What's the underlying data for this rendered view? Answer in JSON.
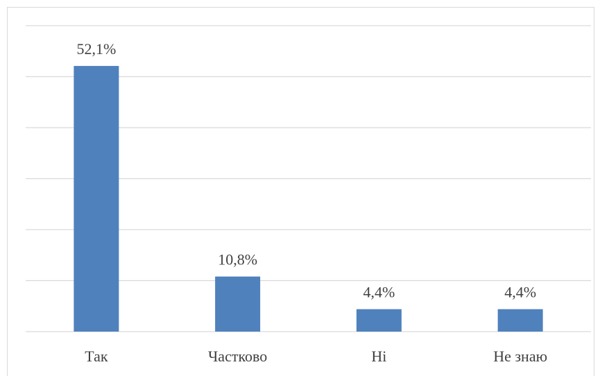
{
  "chart_data": {
    "type": "bar",
    "categories": [
      "Так",
      "Частково",
      "Ні",
      "Не знаю"
    ],
    "values": [
      52.1,
      10.8,
      4.4,
      4.4
    ],
    "value_labels": [
      "52,1%",
      "10,8%",
      "4,4%",
      "4,4%"
    ],
    "color": "#4f81bd",
    "ylim": [
      0,
      60
    ],
    "yticks": [
      0,
      10,
      20,
      30,
      40,
      50,
      60
    ],
    "grid": true
  }
}
